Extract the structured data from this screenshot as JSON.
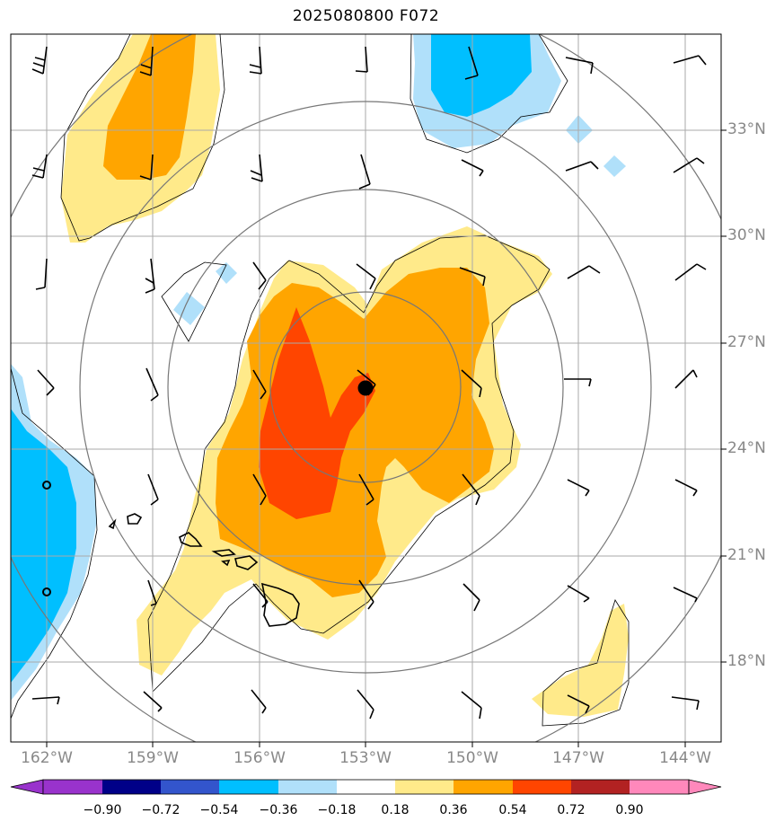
{
  "title": "2025080800 F072",
  "lat_labels": [
    "33°N",
    "30°N",
    "27°N",
    "24°N",
    "21°N",
    "18°N"
  ],
  "lon_labels": [
    "162°W",
    "159°W",
    "156°W",
    "153°W",
    "150°W",
    "147°W",
    "144°W"
  ],
  "colorbar": {
    "ticks": [
      "−0.90",
      "−0.72",
      "−0.54",
      "−0.36",
      "−0.18",
      "0.18",
      "0.36",
      "0.54",
      "0.72",
      "0.90"
    ],
    "colors": [
      "#9933cc",
      "#000088",
      "#3355cc",
      "#00bfff",
      "#b0e0fa",
      "#ffffff",
      "#ffea8a",
      "#ffa500",
      "#ff4500",
      "#b22222",
      "#ff88bb"
    ]
  },
  "storm_center": {
    "lat": 25.7,
    "lon": -153.0
  },
  "colors": {
    "pos_weak": "#ffea8a",
    "pos_mid": "#ffa500",
    "pos_strong": "#ff4500",
    "neg_weak": "#b0e0fa",
    "neg_mid": "#00bfff",
    "grid": "#aaaaaa",
    "range_rings": "#777777"
  }
}
